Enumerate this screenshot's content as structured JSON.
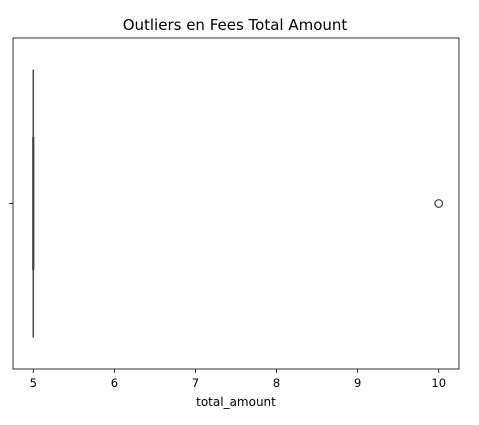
{
  "chart_data": {
    "type": "boxplot",
    "orientation": "horizontal",
    "title": "Outliers en Fees Total Amount",
    "xlabel": "total_amount",
    "ylabel": "",
    "xlim": [
      4.75,
      10.25
    ],
    "x_ticks": [
      5,
      6,
      7,
      8,
      9,
      10
    ],
    "x_tick_labels": [
      "5",
      "6",
      "7",
      "8",
      "9",
      "10"
    ],
    "grid": false,
    "box": {
      "min": 5,
      "q1": 5,
      "median": 5,
      "q3": 5,
      "max": 5,
      "outliers": [
        10
      ]
    },
    "colors": {
      "box": "#4c72b0",
      "outline": "#3f3f3f",
      "axes": "#000000"
    }
  }
}
